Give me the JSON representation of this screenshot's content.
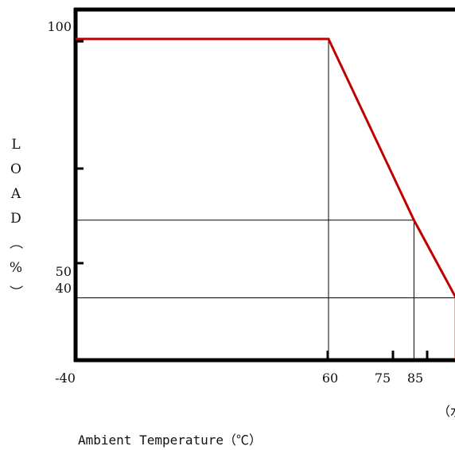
{
  "chart_data": {
    "type": "line",
    "title": "",
    "xlabel": "Ambient Temperature（℃）",
    "ylabel_chars": [
      "L",
      "O",
      "A",
      "D",
      "（",
      "%",
      "）"
    ],
    "xlim": [
      -40,
      100
    ],
    "ylim": [
      0,
      100
    ],
    "x_ticks": [
      {
        "value": -40,
        "label": "-40"
      },
      {
        "value": 60,
        "label": "60"
      },
      {
        "value": 75,
        "label": "75"
      },
      {
        "value": 85,
        "label": "85"
      }
    ],
    "y_ticks": [
      {
        "value": 100,
        "label": "100"
      },
      {
        "value": 50,
        "label": "50"
      },
      {
        "value": 40,
        "label": "40"
      }
    ],
    "series": [
      {
        "color": "#c00000",
        "x": [
          -40,
          60,
          80,
          90,
          90
        ],
        "y": [
          94,
          94,
          57,
          28,
          0
        ]
      }
    ],
    "guides": [
      {
        "x": 60,
        "y": 94
      },
      {
        "x": 80,
        "y": 57
      },
      {
        "x": 90,
        "y": 28
      }
    ],
    "cutoff_text": "（水",
    "grid": false,
    "legend": "none"
  }
}
